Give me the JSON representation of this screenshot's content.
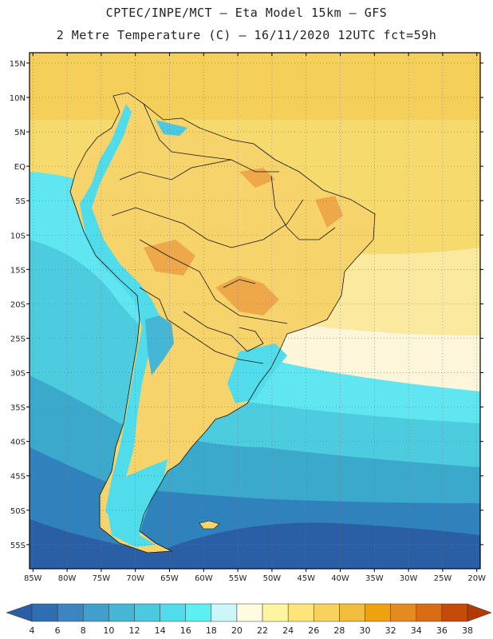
{
  "title_line1": "CPTEC/INPE/MCT –  Eta Model 15km – GFS",
  "title_line2": "2 Metre Temperature (C) – 16/11/2020 12UTC fct=59h",
  "lon_ticks": [
    "85W",
    "80W",
    "75W",
    "70W",
    "65W",
    "60W",
    "55W",
    "50W",
    "45W",
    "40W",
    "35W",
    "30W",
    "25W",
    "20W"
  ],
  "lat_ticks": [
    "15N",
    "10N",
    "5N",
    "EQ",
    "5S",
    "10S",
    "15S",
    "20S",
    "25S",
    "30S",
    "35S",
    "40S",
    "45S",
    "50S",
    "55S"
  ],
  "colorbar": {
    "labels": [
      "4",
      "6",
      "8",
      "10",
      "12",
      "14",
      "16",
      "18",
      "20",
      "22",
      "24",
      "26",
      "28",
      "30",
      "32",
      "34",
      "36",
      "38"
    ],
    "colors": [
      "#2f6eb0",
      "#3b86c0",
      "#41a0cb",
      "#46b6d6",
      "#4ac9e0",
      "#50dceb",
      "#5cf0f5",
      "#cdf6fb",
      "#fffbe0",
      "#fff5a0",
      "#fde57a",
      "#f8d25c",
      "#f0bd3c",
      "#eea20e",
      "#e48a1e",
      "#d86c12",
      "#c64a0a"
    ],
    "low_color": "#2a5fa5",
    "high_color": "#b33a06"
  },
  "map": {
    "ocean_colors": [
      "#f4d05a",
      "#f6da6e",
      "#fbe9a0",
      "#fdf6da",
      "#5fe6f1",
      "#4cccde",
      "#3aa9cc",
      "#2f82bb",
      "#2a5fa5"
    ],
    "land_color": "#f7d36b",
    "andes_colors": [
      "#50dceb",
      "#4ac9e0",
      "#46b6d6"
    ],
    "grid": "dotted"
  }
}
